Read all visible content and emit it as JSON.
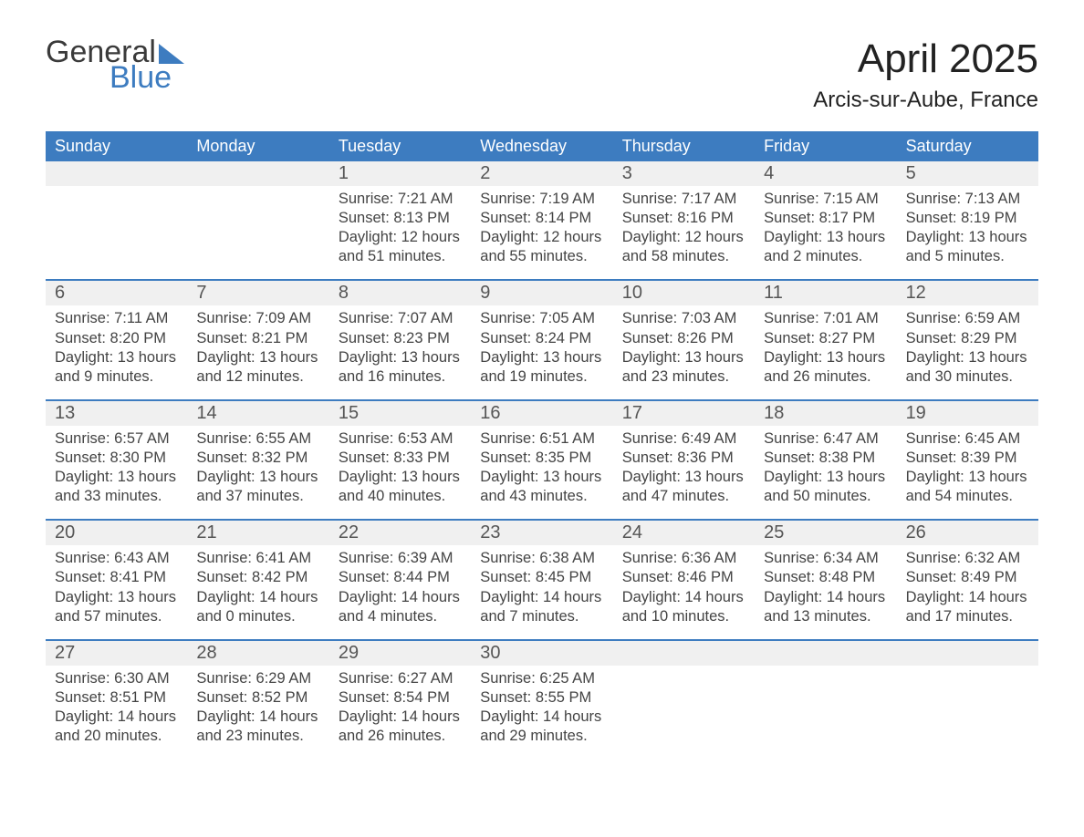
{
  "logo": {
    "line1": "General",
    "line2": "Blue"
  },
  "title": "April 2025",
  "location": "Arcis-sur-Aube, France",
  "colors": {
    "header_blue": "#3d7cc0",
    "row_stripe": "#f0f0f0",
    "text": "#333333",
    "background": "#ffffff"
  },
  "day_names": [
    "Sunday",
    "Monday",
    "Tuesday",
    "Wednesday",
    "Thursday",
    "Friday",
    "Saturday"
  ],
  "weeks": [
    [
      {
        "n": "",
        "sunrise": "",
        "sunset": "",
        "daylight1": "",
        "daylight2": ""
      },
      {
        "n": "",
        "sunrise": "",
        "sunset": "",
        "daylight1": "",
        "daylight2": ""
      },
      {
        "n": "1",
        "sunrise": "Sunrise: 7:21 AM",
        "sunset": "Sunset: 8:13 PM",
        "daylight1": "Daylight: 12 hours",
        "daylight2": "and 51 minutes."
      },
      {
        "n": "2",
        "sunrise": "Sunrise: 7:19 AM",
        "sunset": "Sunset: 8:14 PM",
        "daylight1": "Daylight: 12 hours",
        "daylight2": "and 55 minutes."
      },
      {
        "n": "3",
        "sunrise": "Sunrise: 7:17 AM",
        "sunset": "Sunset: 8:16 PM",
        "daylight1": "Daylight: 12 hours",
        "daylight2": "and 58 minutes."
      },
      {
        "n": "4",
        "sunrise": "Sunrise: 7:15 AM",
        "sunset": "Sunset: 8:17 PM",
        "daylight1": "Daylight: 13 hours",
        "daylight2": "and 2 minutes."
      },
      {
        "n": "5",
        "sunrise": "Sunrise: 7:13 AM",
        "sunset": "Sunset: 8:19 PM",
        "daylight1": "Daylight: 13 hours",
        "daylight2": "and 5 minutes."
      }
    ],
    [
      {
        "n": "6",
        "sunrise": "Sunrise: 7:11 AM",
        "sunset": "Sunset: 8:20 PM",
        "daylight1": "Daylight: 13 hours",
        "daylight2": "and 9 minutes."
      },
      {
        "n": "7",
        "sunrise": "Sunrise: 7:09 AM",
        "sunset": "Sunset: 8:21 PM",
        "daylight1": "Daylight: 13 hours",
        "daylight2": "and 12 minutes."
      },
      {
        "n": "8",
        "sunrise": "Sunrise: 7:07 AM",
        "sunset": "Sunset: 8:23 PM",
        "daylight1": "Daylight: 13 hours",
        "daylight2": "and 16 minutes."
      },
      {
        "n": "9",
        "sunrise": "Sunrise: 7:05 AM",
        "sunset": "Sunset: 8:24 PM",
        "daylight1": "Daylight: 13 hours",
        "daylight2": "and 19 minutes."
      },
      {
        "n": "10",
        "sunrise": "Sunrise: 7:03 AM",
        "sunset": "Sunset: 8:26 PM",
        "daylight1": "Daylight: 13 hours",
        "daylight2": "and 23 minutes."
      },
      {
        "n": "11",
        "sunrise": "Sunrise: 7:01 AM",
        "sunset": "Sunset: 8:27 PM",
        "daylight1": "Daylight: 13 hours",
        "daylight2": "and 26 minutes."
      },
      {
        "n": "12",
        "sunrise": "Sunrise: 6:59 AM",
        "sunset": "Sunset: 8:29 PM",
        "daylight1": "Daylight: 13 hours",
        "daylight2": "and 30 minutes."
      }
    ],
    [
      {
        "n": "13",
        "sunrise": "Sunrise: 6:57 AM",
        "sunset": "Sunset: 8:30 PM",
        "daylight1": "Daylight: 13 hours",
        "daylight2": "and 33 minutes."
      },
      {
        "n": "14",
        "sunrise": "Sunrise: 6:55 AM",
        "sunset": "Sunset: 8:32 PM",
        "daylight1": "Daylight: 13 hours",
        "daylight2": "and 37 minutes."
      },
      {
        "n": "15",
        "sunrise": "Sunrise: 6:53 AM",
        "sunset": "Sunset: 8:33 PM",
        "daylight1": "Daylight: 13 hours",
        "daylight2": "and 40 minutes."
      },
      {
        "n": "16",
        "sunrise": "Sunrise: 6:51 AM",
        "sunset": "Sunset: 8:35 PM",
        "daylight1": "Daylight: 13 hours",
        "daylight2": "and 43 minutes."
      },
      {
        "n": "17",
        "sunrise": "Sunrise: 6:49 AM",
        "sunset": "Sunset: 8:36 PM",
        "daylight1": "Daylight: 13 hours",
        "daylight2": "and 47 minutes."
      },
      {
        "n": "18",
        "sunrise": "Sunrise: 6:47 AM",
        "sunset": "Sunset: 8:38 PM",
        "daylight1": "Daylight: 13 hours",
        "daylight2": "and 50 minutes."
      },
      {
        "n": "19",
        "sunrise": "Sunrise: 6:45 AM",
        "sunset": "Sunset: 8:39 PM",
        "daylight1": "Daylight: 13 hours",
        "daylight2": "and 54 minutes."
      }
    ],
    [
      {
        "n": "20",
        "sunrise": "Sunrise: 6:43 AM",
        "sunset": "Sunset: 8:41 PM",
        "daylight1": "Daylight: 13 hours",
        "daylight2": "and 57 minutes."
      },
      {
        "n": "21",
        "sunrise": "Sunrise: 6:41 AM",
        "sunset": "Sunset: 8:42 PM",
        "daylight1": "Daylight: 14 hours",
        "daylight2": "and 0 minutes."
      },
      {
        "n": "22",
        "sunrise": "Sunrise: 6:39 AM",
        "sunset": "Sunset: 8:44 PM",
        "daylight1": "Daylight: 14 hours",
        "daylight2": "and 4 minutes."
      },
      {
        "n": "23",
        "sunrise": "Sunrise: 6:38 AM",
        "sunset": "Sunset: 8:45 PM",
        "daylight1": "Daylight: 14 hours",
        "daylight2": "and 7 minutes."
      },
      {
        "n": "24",
        "sunrise": "Sunrise: 6:36 AM",
        "sunset": "Sunset: 8:46 PM",
        "daylight1": "Daylight: 14 hours",
        "daylight2": "and 10 minutes."
      },
      {
        "n": "25",
        "sunrise": "Sunrise: 6:34 AM",
        "sunset": "Sunset: 8:48 PM",
        "daylight1": "Daylight: 14 hours",
        "daylight2": "and 13 minutes."
      },
      {
        "n": "26",
        "sunrise": "Sunrise: 6:32 AM",
        "sunset": "Sunset: 8:49 PM",
        "daylight1": "Daylight: 14 hours",
        "daylight2": "and 17 minutes."
      }
    ],
    [
      {
        "n": "27",
        "sunrise": "Sunrise: 6:30 AM",
        "sunset": "Sunset: 8:51 PM",
        "daylight1": "Daylight: 14 hours",
        "daylight2": "and 20 minutes."
      },
      {
        "n": "28",
        "sunrise": "Sunrise: 6:29 AM",
        "sunset": "Sunset: 8:52 PM",
        "daylight1": "Daylight: 14 hours",
        "daylight2": "and 23 minutes."
      },
      {
        "n": "29",
        "sunrise": "Sunrise: 6:27 AM",
        "sunset": "Sunset: 8:54 PM",
        "daylight1": "Daylight: 14 hours",
        "daylight2": "and 26 minutes."
      },
      {
        "n": "30",
        "sunrise": "Sunrise: 6:25 AM",
        "sunset": "Sunset: 8:55 PM",
        "daylight1": "Daylight: 14 hours",
        "daylight2": "and 29 minutes."
      },
      {
        "n": "",
        "sunrise": "",
        "sunset": "",
        "daylight1": "",
        "daylight2": ""
      },
      {
        "n": "",
        "sunrise": "",
        "sunset": "",
        "daylight1": "",
        "daylight2": ""
      },
      {
        "n": "",
        "sunrise": "",
        "sunset": "",
        "daylight1": "",
        "daylight2": ""
      }
    ]
  ]
}
